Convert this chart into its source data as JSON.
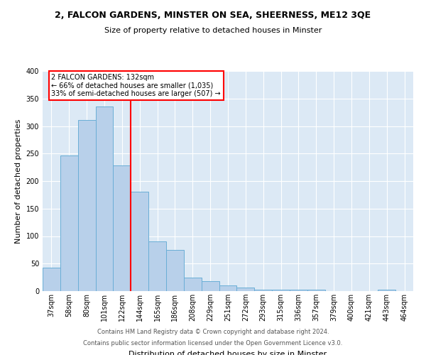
{
  "title": "2, FALCON GARDENS, MINSTER ON SEA, SHEERNESS, ME12 3QE",
  "subtitle": "Size of property relative to detached houses in Minster",
  "xlabel": "Distribution of detached houses by size in Minster",
  "ylabel": "Number of detached properties",
  "bar_labels": [
    "37sqm",
    "58sqm",
    "80sqm",
    "101sqm",
    "122sqm",
    "144sqm",
    "165sqm",
    "186sqm",
    "208sqm",
    "229sqm",
    "251sqm",
    "272sqm",
    "293sqm",
    "315sqm",
    "336sqm",
    "357sqm",
    "379sqm",
    "400sqm",
    "421sqm",
    "443sqm",
    "464sqm"
  ],
  "bar_values": [
    43,
    246,
    311,
    335,
    228,
    181,
    90,
    75,
    25,
    18,
    10,
    6,
    2,
    2,
    2,
    2,
    0,
    0,
    0,
    2,
    0
  ],
  "bar_color": "#b8d0ea",
  "bar_edge_color": "#6aaed6",
  "vline_x_index": 5,
  "vline_color": "red",
  "annotation_title": "2 FALCON GARDENS: 132sqm",
  "annotation_line1": "← 66% of detached houses are smaller (1,035)",
  "annotation_line2": "33% of semi-detached houses are larger (507) →",
  "annotation_box_color": "#ffffff",
  "annotation_box_edge": "red",
  "ylim": [
    0,
    400
  ],
  "yticks": [
    0,
    50,
    100,
    150,
    200,
    250,
    300,
    350,
    400
  ],
  "footer1": "Contains HM Land Registry data © Crown copyright and database right 2024.",
  "footer2": "Contains public sector information licensed under the Open Government Licence v3.0.",
  "axes_background": "#dce9f5",
  "fig_background": "#ffffff",
  "title_fontsize": 9,
  "subtitle_fontsize": 8,
  "xlabel_fontsize": 8,
  "ylabel_fontsize": 8,
  "tick_fontsize": 7,
  "footer_fontsize": 6
}
